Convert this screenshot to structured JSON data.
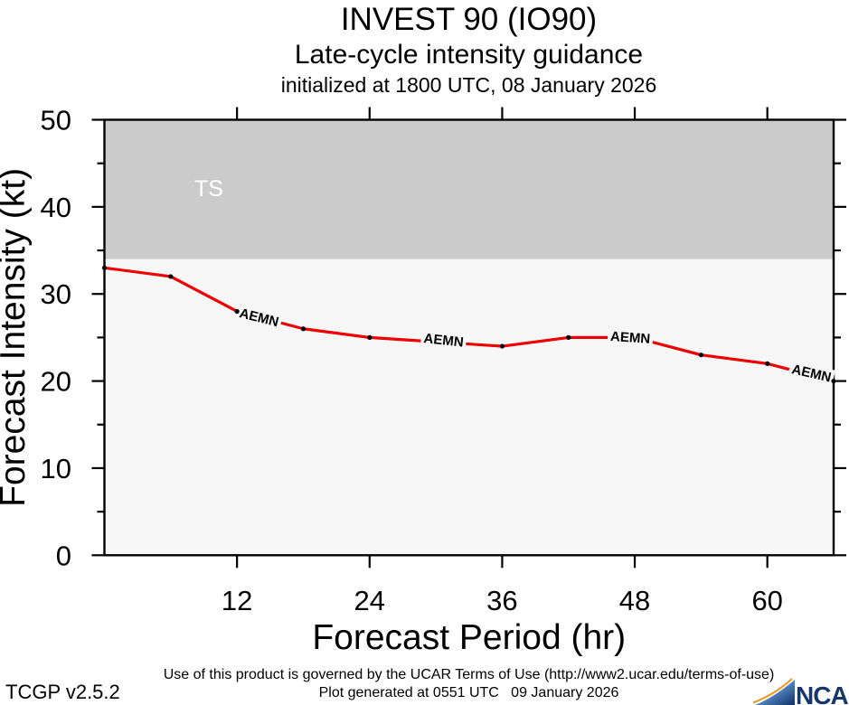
{
  "chart_data": {
    "type": "line",
    "title": "INVEST 90 (IO90)",
    "subtitle": "Late-cycle intensity guidance",
    "init_label": "initialized at 1800 UTC, 08 January 2026",
    "xlabel": "Forecast Period (hr)",
    "ylabel": "Forecast Intensity (kt)",
    "xlim": [
      0,
      66
    ],
    "ylim": [
      0,
      50
    ],
    "x_ticks": [
      12,
      24,
      36,
      48,
      60
    ],
    "y_ticks": [
      0,
      10,
      20,
      30,
      40,
      50
    ],
    "y_minor_ticks": [
      5,
      15,
      25,
      35,
      45
    ],
    "grid": "off",
    "plot_bg": "#f7f7f7",
    "threshold_band": {
      "label": "TS",
      "from_kt": 34,
      "to_kt": 50,
      "color": "#cbcbcb",
      "label_color": "#ffffff"
    },
    "series": [
      {
        "name": "AEMN",
        "color": "#ee0000",
        "marker_color": "#000000",
        "x_hours": [
          0,
          6,
          12,
          18,
          24,
          30,
          36,
          42,
          48,
          54,
          60,
          66
        ],
        "values_kt": [
          33,
          32,
          28,
          26,
          25,
          24.5,
          24,
          25,
          25,
          23,
          22,
          20
        ],
        "marker_hidden_hours": [
          30,
          48
        ],
        "inline_labels": [
          {
            "hour": 14.0,
            "kt": 27.3,
            "rotation_deg": 14
          },
          {
            "hour": 30.7,
            "kt": 24.7,
            "rotation_deg": 6
          },
          {
            "hour": 47.6,
            "kt": 25.0,
            "rotation_deg": 4
          },
          {
            "hour": 64.0,
            "kt": 20.9,
            "rotation_deg": 13
          }
        ]
      }
    ]
  },
  "footer": {
    "terms": "Use of this product is governed by the UCAR Terms of Use (http://www2.ucar.edu/terms-of-use)",
    "version": "TCGP v2.5.2",
    "generated": "Plot generated at 0551 UTC   09 January 2026",
    "ncar": "NCAR"
  }
}
